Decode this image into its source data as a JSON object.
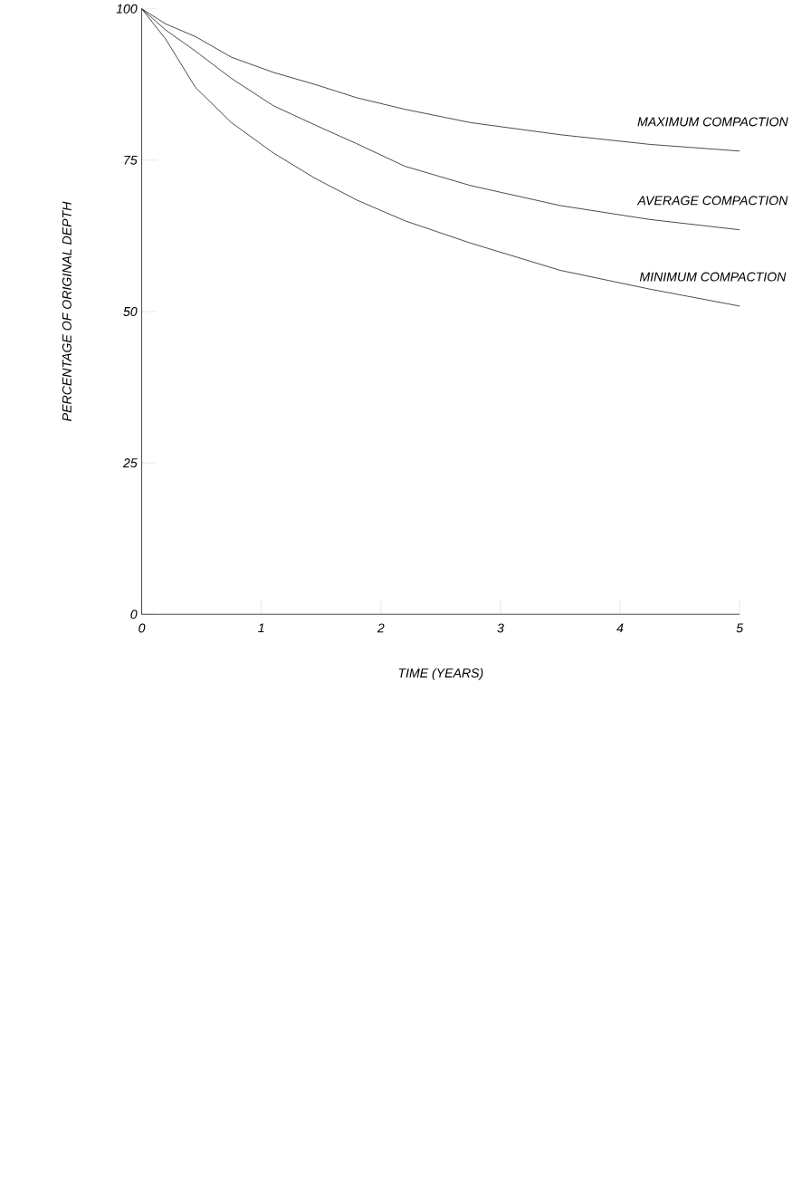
{
  "chart_data": {
    "type": "line",
    "xlabel": "TIME (YEARS)",
    "ylabel": "PERCENTAGE OF ORIGINAL DEPTH",
    "x": [
      0,
      0.2,
      0.45,
      0.75,
      1.1,
      1.45,
      1.8,
      2.2,
      2.75,
      3.5,
      4.25,
      5
    ],
    "series": [
      {
        "name": "MAXIMUM COMPACTION",
        "color": "#000000",
        "values": [
          100,
          97.5,
          95.4,
          92,
          89.5,
          87.5,
          85.3,
          83.4,
          81.2,
          79.2,
          77.6,
          76.5
        ]
      },
      {
        "name": "AVERAGE COMPACTION",
        "color": "#000000",
        "values": [
          100,
          96.5,
          93,
          88.5,
          84,
          80.8,
          77.7,
          74,
          70.8,
          67.5,
          65.2,
          63.5
        ]
      },
      {
        "name": "MINIMUM COMPACTION",
        "color": "#000000",
        "values": [
          100,
          95,
          87,
          81.2,
          76.2,
          72,
          68.4,
          65,
          61.3,
          56.8,
          53.7,
          50.9
        ]
      }
    ],
    "xlim": [
      0,
      5
    ],
    "ylim": [
      0,
      100
    ],
    "xticks": [
      0,
      1,
      2,
      3,
      4,
      5
    ],
    "yticks": [
      0,
      25,
      50,
      75,
      100
    ]
  }
}
